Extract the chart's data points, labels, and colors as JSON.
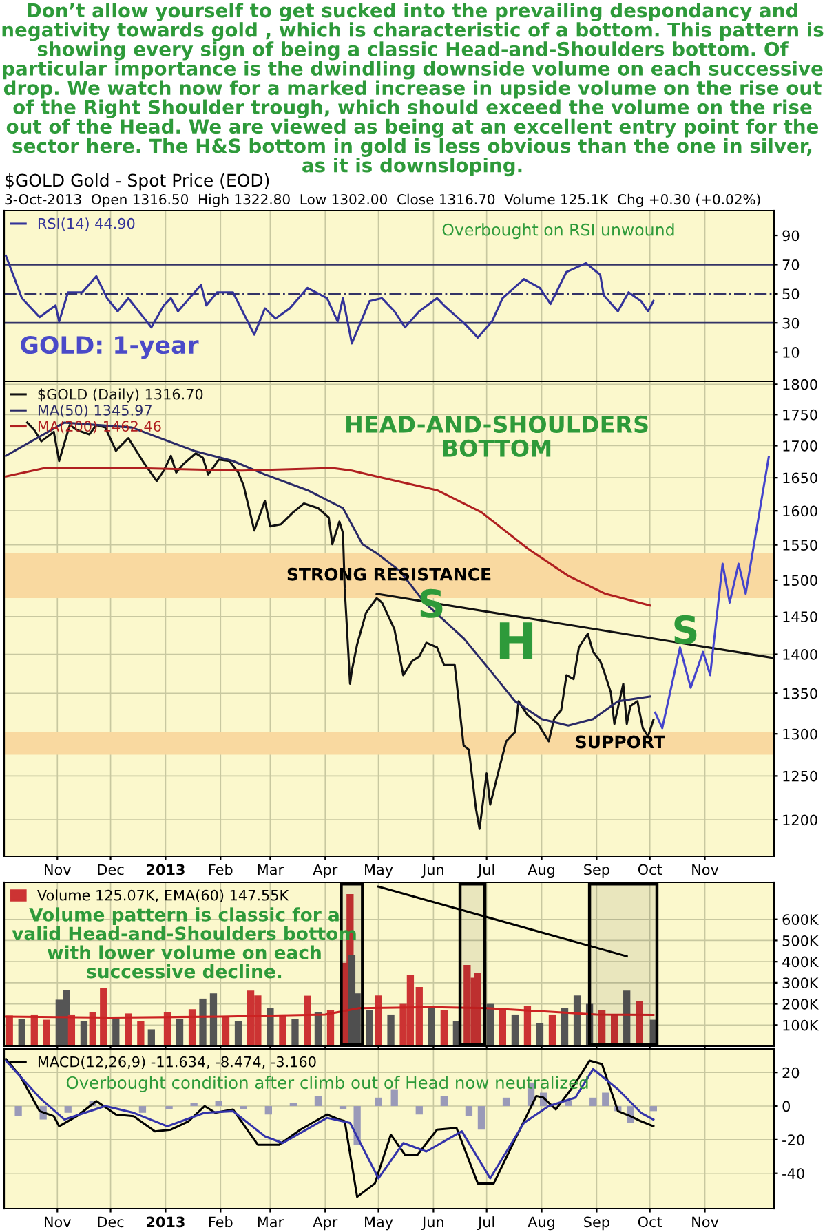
{
  "chart_data": [
    {
      "type": "line",
      "title": "Don’t allow yourself to get sucked into the prevailing despondancy and negativity towards gold , which is characteristic of a bottom. This pattern is showing every sign of being a classic Head-and-Shoulders bottom. Of particular importance is the dwindling downside volume on each successive drop. We watch now for a marked increase in upside volume on the rise out of the Right Shoulder trough, which should exceed the volume on the rise out of the Head. We are viewed as being at an excellent entry point for the sector here. The H&S bottom in gold is less obvious than the one in silver, as it is downsloping.",
      "subtitle": "$GOLD Gold - Spot Price (EOD)",
      "annotations": [
        "3-Oct-2013  Open 1316.50  High 1322.80  Low 1302.00  Close 1316.70  Volume 125.1K  Chg +0.30 (+0.02%)",
        "Overbought on RSI unwound",
        "GOLD: 1-year"
      ],
      "x": [
        "2012-10-03",
        "2012-10-08",
        "2012-10-12",
        "2012-10-22",
        "2012-10-31",
        "2012-11-02",
        "2012-11-07",
        "2012-11-15",
        "2012-11-23",
        "2012-11-29",
        "2012-12-05",
        "2012-12-11",
        "2012-12-24",
        "2012-12-31",
        "2013-01-04",
        "2013-01-08",
        "2013-01-21",
        "2013-01-24",
        "2013-01-30",
        "2013-02-08",
        "2013-02-20",
        "2013-02-26",
        "2013-03-04",
        "2013-03-12",
        "2013-03-22",
        "2013-04-02",
        "2013-04-08",
        "2013-04-11",
        "2013-04-16",
        "2013-04-26",
        "2013-05-03",
        "2013-05-10",
        "2013-05-16",
        "2013-05-24",
        "2013-06-03",
        "2013-06-07",
        "2013-06-19",
        "2013-06-26",
        "2013-07-04",
        "2013-07-10",
        "2013-07-22",
        "2013-07-31",
        "2013-08-06",
        "2013-08-15",
        "2013-08-26",
        "2013-09-03",
        "2013-09-05",
        "2013-09-13",
        "2013-09-19",
        "2013-09-26",
        "2013-09-30",
        "2013-10-03"
      ],
      "series": [
        {
          "name": "RSI(14) 44.90",
          "color": "#333399",
          "values": [
            76,
            60,
            47,
            34,
            42,
            31,
            51,
            51,
            62,
            47,
            38,
            47,
            27,
            42,
            47,
            38,
            56,
            42,
            51,
            51,
            22,
            40,
            33,
            40,
            54,
            47,
            31,
            47,
            16,
            45,
            47,
            38,
            27,
            38,
            47,
            42,
            29,
            20,
            31,
            47,
            60,
            54,
            43,
            65,
            71,
            63,
            49,
            38,
            51,
            45,
            38,
            45
          ]
        }
      ],
      "xlim": [
        "2012-10-02",
        "2013-12-10"
      ],
      "ylim": [
        -10,
        107
      ],
      "yticks": [
        10,
        30,
        50,
        70,
        90
      ],
      "xticks": [
        {
          "value": "2012-11-01",
          "label": null
        },
        {
          "value": "2012-12-01",
          "label": null
        },
        {
          "value": "2013-01-01",
          "label": null
        },
        {
          "value": "2013-02-01",
          "label": null
        },
        {
          "value": "2013-03-01",
          "label": null
        },
        {
          "value": "2013-04-01",
          "label": null
        },
        {
          "value": "2013-05-01",
          "label": null
        },
        {
          "value": "2013-06-01",
          "label": null
        },
        {
          "value": "2013-07-01",
          "label": null
        },
        {
          "value": "2013-08-01",
          "label": null
        },
        {
          "value": "2013-09-01",
          "label": null
        },
        {
          "value": "2013-10-01",
          "label": null
        },
        {
          "value": "2013-11-01",
          "label": null
        }
      ],
      "ref_lines": [
        {
          "axis": "y",
          "value": 70,
          "color": "#333366",
          "line_style": "solid"
        },
        {
          "axis": "y",
          "value": 50,
          "color": "#333366",
          "line_style": "dashed"
        },
        {
          "axis": "y",
          "value": 30,
          "color": "#333366",
          "line_style": "solid"
        }
      ],
      "grid": "x",
      "legend": "top left",
      "tick_labels": "y"
    },
    {
      "type": "line",
      "log": true,
      "annotations": [
        "HEAD-AND-SHOULDERS\nBOTTOM",
        "S",
        "H",
        "S"
      ],
      "series": [
        {
          "name": "$GOLD (Daily) 1316.70",
          "color": "#111111",
          "x": [
            "2012-10-15",
            "2012-10-19",
            "2012-10-23",
            "2012-10-30",
            "2012-11-02",
            "2012-11-08",
            "2012-11-12",
            "2012-11-19",
            "2012-11-23",
            "2012-11-28",
            "2012-12-04",
            "2012-12-11",
            "2012-12-20",
            "2012-12-27",
            "2012-12-31",
            "2013-01-04",
            "2013-01-07",
            "2013-01-11",
            "2013-01-18",
            "2013-01-22",
            "2013-01-25",
            "2013-01-31",
            "2013-02-06",
            "2013-02-11",
            "2013-02-14",
            "2013-02-20",
            "2013-02-26",
            "2013-03-01",
            "2013-03-07",
            "2013-03-14",
            "2013-03-20",
            "2013-03-28",
            "2013-04-03",
            "2013-04-05",
            "2013-04-09",
            "2013-04-11",
            "2013-04-12",
            "2013-04-15",
            "2013-04-16",
            "2013-04-19",
            "2013-04-24",
            "2013-04-30",
            "2013-05-03",
            "2013-05-10",
            "2013-05-15",
            "2013-05-20",
            "2013-05-24",
            "2013-05-28",
            "2013-06-03",
            "2013-06-07",
            "2013-06-13",
            "2013-06-18",
            "2013-06-21",
            "2013-06-25",
            "2013-06-27",
            "2013-07-01",
            "2013-07-03",
            "2013-07-08",
            "2013-07-12",
            "2013-07-17",
            "2013-07-19",
            "2013-07-24",
            "2013-07-30",
            "2013-08-05",
            "2013-08-08",
            "2013-08-12",
            "2013-08-15",
            "2013-08-19",
            "2013-08-22",
            "2013-08-27",
            "2013-08-30",
            "2013-09-03",
            "2013-09-05",
            "2013-09-09",
            "2013-09-11",
            "2013-09-16",
            "2013-09-18",
            "2013-09-20",
            "2013-09-24",
            "2013-09-27",
            "2013-09-30",
            "2013-10-03"
          ],
          "values": [
            1737,
            1725,
            1707,
            1722,
            1676,
            1733,
            1725,
            1718,
            1733,
            1729,
            1692,
            1712,
            1672,
            1645,
            1661,
            1684,
            1658,
            1671,
            1688,
            1681,
            1655,
            1678,
            1676,
            1658,
            1638,
            1571,
            1615,
            1577,
            1580,
            1598,
            1611,
            1604,
            1590,
            1551,
            1584,
            1567,
            1488,
            1362,
            1379,
            1413,
            1455,
            1475,
            1469,
            1433,
            1373,
            1391,
            1397,
            1415,
            1409,
            1386,
            1386,
            1286,
            1281,
            1212,
            1190,
            1253,
            1217,
            1258,
            1291,
            1302,
            1340,
            1323,
            1312,
            1291,
            1318,
            1329,
            1373,
            1368,
            1409,
            1427,
            1403,
            1391,
            1379,
            1351,
            1312,
            1362,
            1312,
            1334,
            1340,
            1307,
            1297,
            1317
          ]
        },
        {
          "name": "MA(50) 1345.97",
          "color": "#2a2a66",
          "x": [
            "2012-10-03",
            "2012-11-05",
            "2012-12-13",
            "2013-01-18",
            "2013-02-08",
            "2013-02-26",
            "2013-03-22",
            "2013-04-11",
            "2013-04-22",
            "2013-04-30",
            "2013-05-13",
            "2013-05-27",
            "2013-06-18",
            "2013-07-03",
            "2013-07-17",
            "2013-08-01",
            "2013-08-16",
            "2013-08-30",
            "2013-09-13",
            "2013-10-01"
          ],
          "values": [
            1684,
            1737,
            1729,
            1691,
            1676,
            1655,
            1631,
            1604,
            1551,
            1538,
            1513,
            1469,
            1421,
            1379,
            1340,
            1318,
            1310,
            1318,
            1340,
            1346
          ]
        },
        {
          "name": "MA(200) 1462.46",
          "color": "#b02020",
          "x": [
            "2012-10-03",
            "2012-10-25",
            "2012-12-13",
            "2013-02-13",
            "2013-04-05",
            "2013-04-16",
            "2013-04-30",
            "2013-06-03",
            "2013-06-28",
            "2013-07-24",
            "2013-08-16",
            "2013-09-06",
            "2013-10-01"
          ],
          "values": [
            1652,
            1665,
            1665,
            1661,
            1665,
            1661,
            1652,
            1631,
            1598,
            1545,
            1506,
            1481,
            1465
          ]
        },
        {
          "color": "#111111",
          "x": [
            "2013-04-30",
            "2013-12-10"
          ],
          "values": [
            1481,
            1395
          ]
        },
        {
          "color": "#4444cc",
          "x": [
            "2013-10-04",
            "2013-10-08",
            "2013-10-18",
            "2013-10-24",
            "2013-10-31",
            "2013-11-04",
            "2013-11-11",
            "2013-11-15",
            "2013-11-20",
            "2013-11-24",
            "2013-12-07"
          ],
          "values": [
            1326,
            1307,
            1409,
            1357,
            1403,
            1373,
            1523,
            1469,
            1523,
            1481,
            1682
          ]
        }
      ],
      "xlim": [
        "2012-10-02",
        "2013-12-10"
      ],
      "ylim": [
        1160,
        1805
      ],
      "yticks": [
        1200,
        1250,
        1300,
        1350,
        1400,
        1450,
        1500,
        1550,
        1600,
        1650,
        1700,
        1750,
        1800
      ],
      "xticks": [
        {
          "value": "2012-11-01",
          "label": "Nov"
        },
        {
          "value": "2012-12-01",
          "label": "Dec"
        },
        {
          "value": "2013-01-01",
          "label": "2013"
        },
        {
          "value": "2013-02-01",
          "label": "Feb"
        },
        {
          "value": "2013-03-01",
          "label": "Mar"
        },
        {
          "value": "2013-04-01",
          "label": "Apr"
        },
        {
          "value": "2013-05-01",
          "label": "May"
        },
        {
          "value": "2013-06-01",
          "label": "Jun"
        },
        {
          "value": "2013-07-01",
          "label": "Jul"
        },
        {
          "value": "2013-08-01",
          "label": "Aug"
        },
        {
          "value": "2013-09-01",
          "label": "Sep"
        },
        {
          "value": "2013-10-01",
          "label": "Oct"
        },
        {
          "value": "2013-11-01",
          "label": "Nov"
        }
      ],
      "bands": [
        {
          "axis": "y",
          "from": 1475,
          "to": 1538,
          "label": "STRONG RESISTANCE",
          "color": "#f9d9a0"
        },
        {
          "axis": "y",
          "from": 1275,
          "to": 1302,
          "label": "SUPPORT",
          "color": "#f9d9a0"
        }
      ],
      "grid": true,
      "legend": "top left"
    },
    {
      "type": "bar",
      "annotations": [
        "Volume pattern is classic for a\nvalid Head-and-Shoulders bottom\nwith lower volume on each\nsuccessive decline."
      ],
      "series": [
        {
          "name": "Volume 125.07K, EMA(60) 147.55K",
          "color": "#cc3333",
          "x": [
            "2012-10-05",
            "2012-10-12",
            "2012-10-19",
            "2012-10-26",
            "2012-11-02",
            "2012-11-06",
            "2012-11-09",
            "2012-11-16",
            "2012-11-21",
            "2012-11-27",
            "2012-12-04",
            "2012-12-11",
            "2012-12-18",
            "2012-12-24",
            "2013-01-02",
            "2013-01-09",
            "2013-01-16",
            "2013-01-22",
            "2013-01-28",
            "2013-02-04",
            "2013-02-11",
            "2013-02-18",
            "2013-02-22",
            "2013-03-01",
            "2013-03-08",
            "2013-03-15",
            "2013-03-22",
            "2013-03-28",
            "2013-04-04",
            "2013-04-12",
            "2013-04-15",
            "2013-04-16",
            "2013-04-19",
            "2013-04-26",
            "2013-05-01",
            "2013-05-08",
            "2013-05-15",
            "2013-05-19",
            "2013-05-24",
            "2013-05-31",
            "2013-06-07",
            "2013-06-14",
            "2013-06-20",
            "2013-06-24",
            "2013-06-26",
            "2013-07-03",
            "2013-07-10",
            "2013-07-17",
            "2013-07-24",
            "2013-07-31",
            "2013-08-07",
            "2013-08-14",
            "2013-08-21",
            "2013-08-28",
            "2013-09-04",
            "2013-09-11",
            "2013-09-18",
            "2013-09-25",
            "2013-10-03"
          ],
          "values": [
            145000,
            130000,
            150000,
            125000,
            220000,
            265000,
            150000,
            120000,
            160000,
            275000,
            140000,
            155000,
            120000,
            80000,
            160000,
            130000,
            175000,
            225000,
            250000,
            140000,
            120000,
            263000,
            240000,
            180000,
            150000,
            130000,
            239000,
            160000,
            170000,
            395000,
            720000,
            430000,
            250000,
            170000,
            240000,
            150000,
            200000,
            335000,
            280000,
            190000,
            170000,
            120000,
            384000,
            324000,
            348000,
            200000,
            180000,
            150000,
            190000,
            110000,
            150000,
            180000,
            240000,
            200000,
            170000,
            150000,
            263000,
            215000,
            125000
          ],
          "colors": [
            "#cc3333",
            "#555555",
            "#cc3333",
            "#cc3333",
            "#555555",
            "#555555",
            "#cc3333",
            "#555555",
            "#cc3333",
            "#cc3333",
            "#555555",
            "#cc3333",
            "#cc3333",
            "#555555",
            "#cc3333",
            "#555555",
            "#cc3333",
            "#555555",
            "#555555",
            "#cc3333",
            "#555555",
            "#cc3333",
            "#cc3333",
            "#555555",
            "#cc3333",
            "#555555",
            "#cc3333",
            "#555555",
            "#cc3333",
            "#cc3333",
            "#cc3333",
            "#555555",
            "#555555",
            "#555555",
            "#cc3333",
            "#555555",
            "#cc3333",
            "#cc3333",
            "#cc3333",
            "#555555",
            "#cc3333",
            "#555555",
            "#cc3333",
            "#cc3333",
            "#cc3333",
            "#555555",
            "#cc3333",
            "#555555",
            "#cc3333",
            "#555555",
            "#cc3333",
            "#555555",
            "#555555",
            "#555555",
            "#cc3333",
            "#cc3333",
            "#555555",
            "#cc3333",
            "#555555"
          ]
        },
        {
          "type": "line",
          "color": "#cc2222",
          "x": [
            "2012-10-03",
            "2012-12-01",
            "2013-02-01",
            "2013-04-01",
            "2013-04-20",
            "2013-06-01",
            "2013-07-01",
            "2013-08-01",
            "2013-09-01",
            "2013-10-03"
          ],
          "values": [
            140000,
            135000,
            140000,
            150000,
            180000,
            185000,
            180000,
            165000,
            150000,
            148000
          ]
        },
        {
          "type": "line",
          "color": "#000000",
          "x": [
            "2013-05-01",
            "2013-09-18"
          ],
          "values": [
            755000,
            425000
          ]
        }
      ],
      "xlim": [
        "2012-10-02",
        "2013-12-10"
      ],
      "ylim": [
        0,
        775000
      ],
      "yticks": [
        {
          "value": 100000,
          "label": "100K"
        },
        {
          "value": 200000,
          "label": "200K"
        },
        {
          "value": 300000,
          "label": "300K"
        },
        {
          "value": 400000,
          "label": "400K"
        },
        {
          "value": 500000,
          "label": "500K"
        },
        {
          "value": 600000,
          "label": "600K"
        }
      ],
      "xticks": [
        {
          "value": "2012-11-01",
          "label": null
        },
        {
          "value": "2012-12-01",
          "label": null
        },
        {
          "value": "2013-01-01",
          "label": null
        },
        {
          "value": "2013-02-01",
          "label": null
        },
        {
          "value": "2013-03-01",
          "label": null
        },
        {
          "value": "2013-04-01",
          "label": null
        },
        {
          "value": "2013-05-01",
          "label": null
        },
        {
          "value": "2013-06-01",
          "label": null
        },
        {
          "value": "2013-07-01",
          "label": null
        },
        {
          "value": "2013-08-01",
          "label": null
        },
        {
          "value": "2013-09-01",
          "label": null
        },
        {
          "value": "2013-10-01",
          "label": null
        },
        {
          "value": "2013-11-01",
          "label": null
        }
      ],
      "bands": [
        {
          "axis": "x",
          "from": "2013-04-10",
          "to": "2013-04-22",
          "color": "#000000"
        },
        {
          "axis": "x",
          "from": "2013-06-16",
          "to": "2013-06-30",
          "color": "#000000"
        },
        {
          "axis": "x",
          "from": "2013-08-28",
          "to": "2013-10-05",
          "color": "#000000"
        }
      ],
      "grid": true,
      "legend": "top left",
      "tick_labels": "y"
    },
    {
      "type": "line",
      "annotations": [
        "Overbought condition after climb out of Head now neutralized"
      ],
      "series": [
        {
          "type": "bar",
          "color": "#9a9ab8",
          "x": [
            "2012-10-10",
            "2012-10-24",
            "2012-11-07",
            "2012-11-21",
            "2012-12-05",
            "2012-12-19",
            "2013-01-03",
            "2013-01-17",
            "2013-01-31",
            "2013-02-14",
            "2013-02-28",
            "2013-03-14",
            "2013-03-28",
            "2013-04-11",
            "2013-04-19",
            "2013-05-01",
            "2013-05-10",
            "2013-05-24",
            "2013-06-07",
            "2013-06-21",
            "2013-06-28",
            "2013-07-12",
            "2013-07-26",
            "2013-08-02",
            "2013-08-16",
            "2013-08-30",
            "2013-09-06",
            "2013-09-13",
            "2013-09-20",
            "2013-10-03"
          ],
          "values": [
            -6,
            -8,
            -4,
            3,
            0,
            -4,
            -2,
            2,
            3,
            -2,
            -5,
            2,
            6,
            -2,
            -23,
            5,
            10,
            -5,
            6,
            -6,
            -14,
            5,
            14,
            8,
            3,
            5,
            8,
            -3,
            -10,
            -3
          ]
        },
        {
          "name": "MACD(12,26,9) -11.634, -8.474, -3.160",
          "color": "#000000",
          "x": [
            "2012-10-03",
            "2012-10-11",
            "2012-10-22",
            "2012-10-30",
            "2012-11-02",
            "2012-11-12",
            "2012-11-23",
            "2012-12-04",
            "2012-12-14",
            "2012-12-26",
            "2013-01-04",
            "2013-01-14",
            "2013-01-23",
            "2013-01-29",
            "2013-02-08",
            "2013-02-22",
            "2013-03-06",
            "2013-03-18",
            "2013-04-02",
            "2013-04-09",
            "2013-04-12",
            "2013-04-19",
            "2013-04-29",
            "2013-05-08",
            "2013-05-16",
            "2013-05-23",
            "2013-06-03",
            "2013-06-14",
            "2013-06-26",
            "2013-07-05",
            "2013-07-16",
            "2013-07-29",
            "2013-08-02",
            "2013-08-09",
            "2013-08-19",
            "2013-08-28",
            "2013-09-04",
            "2013-09-13",
            "2013-09-20",
            "2013-09-26",
            "2013-10-03"
          ],
          "values": [
            28,
            18,
            -3,
            -6,
            -12,
            -6,
            3,
            -5,
            -6,
            -15,
            -14,
            -9,
            0,
            -4,
            -2,
            -23,
            -23,
            -14,
            -5,
            -8,
            -9,
            -54,
            -46,
            -17,
            -29,
            -29,
            -14,
            -13,
            -46,
            -46,
            -22,
            6,
            5,
            -2,
            12,
            27,
            25,
            -3,
            -6,
            -9,
            -12
          ]
        },
        {
          "color": "#3333aa",
          "x": [
            "2012-10-03",
            "2012-10-22",
            "2012-11-05",
            "2012-11-28",
            "2012-12-14",
            "2013-01-02",
            "2013-01-23",
            "2013-02-08",
            "2013-02-26",
            "2013-03-08",
            "2013-04-02",
            "2013-04-15",
            "2013-05-01",
            "2013-05-15",
            "2013-05-28",
            "2013-06-17",
            "2013-07-03",
            "2013-07-22",
            "2013-08-05",
            "2013-08-20",
            "2013-08-30",
            "2013-09-13",
            "2013-09-26",
            "2013-10-03"
          ],
          "values": [
            27,
            5,
            -8,
            0,
            -4,
            -12,
            -4,
            -3,
            -18,
            -22,
            -7,
            -10,
            -43,
            -22,
            -27,
            -15,
            -43,
            -10,
            0,
            5,
            22,
            10,
            -4,
            -8
          ]
        }
      ],
      "xlim": [
        "2012-10-02",
        "2013-12-10"
      ],
      "ylim": [
        -61,
        34
      ],
      "yticks": [
        -40,
        -20,
        0,
        20
      ],
      "xticks": [
        {
          "value": "2012-11-01",
          "label": "Nov"
        },
        {
          "value": "2012-12-01",
          "label": "Dec"
        },
        {
          "value": "2013-01-01",
          "label": "2013"
        },
        {
          "value": "2013-02-01",
          "label": "Feb"
        },
        {
          "value": "2013-03-01",
          "label": "Mar"
        },
        {
          "value": "2013-04-01",
          "label": "Apr"
        },
        {
          "value": "2013-05-01",
          "label": "May"
        },
        {
          "value": "2013-06-01",
          "label": "Jun"
        },
        {
          "value": "2013-07-01",
          "label": "Jul"
        },
        {
          "value": "2013-08-01",
          "label": "Aug"
        },
        {
          "value": "2013-09-01",
          "label": "Sep"
        },
        {
          "value": "2013-10-01",
          "label": "Oct"
        },
        {
          "value": "2013-11-01",
          "label": "Nov"
        }
      ],
      "grid": true,
      "legend": "top left"
    }
  ]
}
